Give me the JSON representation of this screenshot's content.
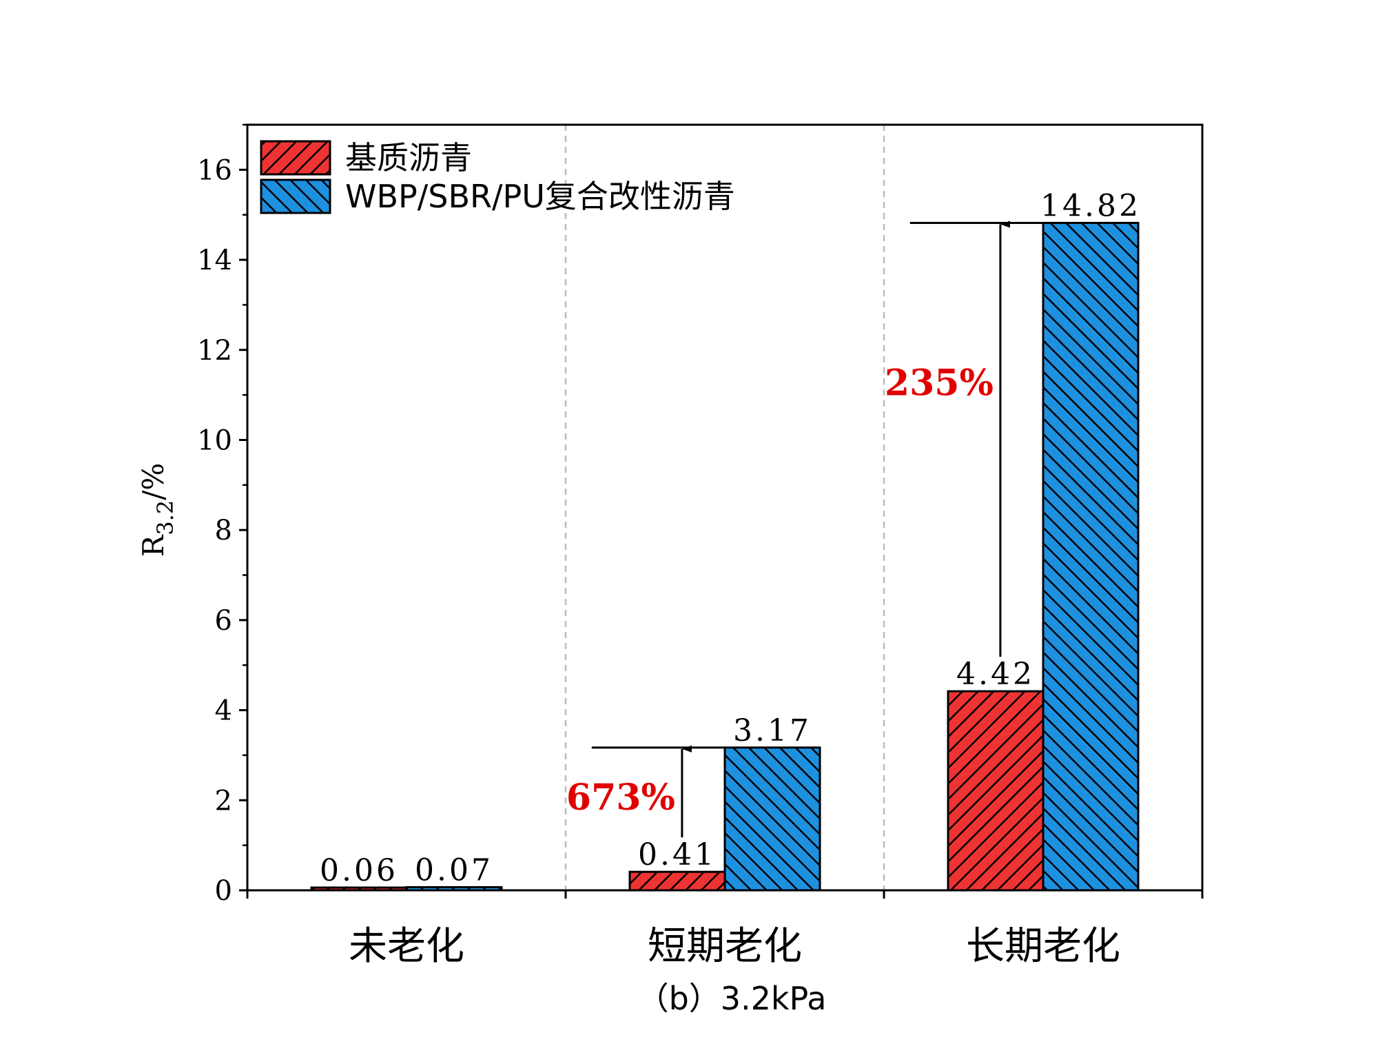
{
  "chart_data": {
    "type": "bar",
    "caption": "（b）3.2kPa",
    "ylabel_main": "R",
    "ylabel_sub": "3.2",
    "ylabel_unit": "/%",
    "ylim": [
      0,
      17
    ],
    "yticks": [
      0,
      2,
      4,
      6,
      8,
      10,
      12,
      14,
      16
    ],
    "grid": "vertical dashed separators between groups",
    "legend_position": "top-left",
    "categories": [
      "未老化",
      "短期老化",
      "长期老化"
    ],
    "series": [
      {
        "name": "基质沥青",
        "color": "#ee3333",
        "hatch": "forward",
        "values": [
          0.06,
          0.41,
          4.42
        ],
        "labels": [
          "0.06",
          "0.41",
          "4.42"
        ]
      },
      {
        "name": "WBP/SBR/PU复合改性沥青",
        "color": "#1e90e0",
        "hatch": "backward",
        "values": [
          0.07,
          3.17,
          14.82
        ],
        "labels": [
          "0.07",
          "3.17",
          "14.82"
        ]
      }
    ],
    "annotations": [
      {
        "category_index": 1,
        "text": "673%",
        "color": "#e00000",
        "from": 0.41,
        "to": 3.17
      },
      {
        "category_index": 2,
        "text": "235%",
        "color": "#e00000",
        "from": 4.42,
        "to": 14.82
      }
    ]
  }
}
